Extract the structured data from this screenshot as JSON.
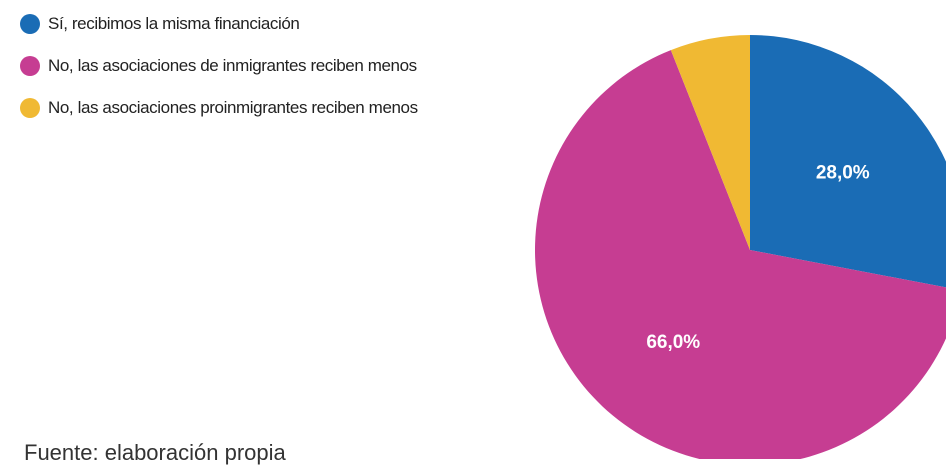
{
  "chart_data": {
    "type": "pie",
    "categories": [
      "Sí, recibimos la misma financiación",
      "No, las asociaciones de inmigrantes reciben menos",
      "No, las asociaciones proinmigrantes reciben menos"
    ],
    "values": [
      28,
      66,
      6
    ],
    "value_labels": [
      "28,0%",
      "66,0%",
      null
    ],
    "colors": [
      "#1a6cb5",
      "#c63d92",
      "#f0b933"
    ],
    "source": "Fuente: elaboración propia"
  }
}
